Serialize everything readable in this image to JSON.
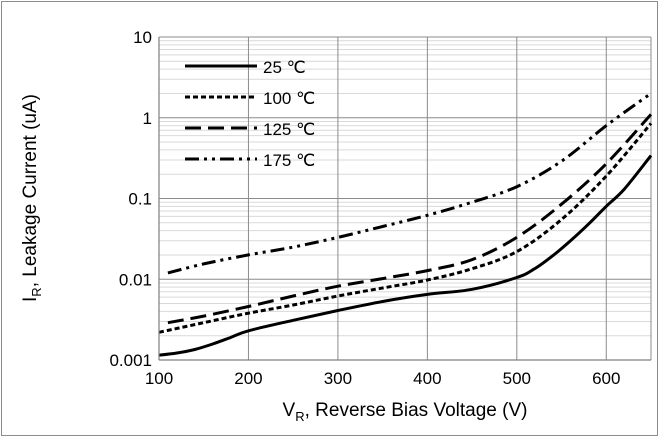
{
  "chart_data": {
    "type": "line",
    "title": "",
    "xlabel": {
      "main": "V",
      "sub": "R",
      "rest": ", Reverse Bias Voltage (V)"
    },
    "ylabel": {
      "main": "I",
      "sub": "R",
      "rest": ", Leakage Current (uA)"
    },
    "x_scale": "linear",
    "y_scale": "log",
    "xlim": [
      100,
      650
    ],
    "ylim": [
      0.001,
      10
    ],
    "x_ticks": [
      "100",
      "200",
      "300",
      "400",
      "500",
      "600"
    ],
    "y_ticks": [
      "0.001",
      "0.01",
      "0.1",
      "1",
      "10"
    ],
    "grid": true,
    "legend": "top-left",
    "series": [
      {
        "name": "25 ℃",
        "style": "solid",
        "x": [
          100,
          120,
          140,
          160,
          180,
          200,
          250,
          300,
          350,
          400,
          450,
          500,
          520,
          540,
          560,
          580,
          600,
          620,
          650
        ],
        "y": [
          0.00115,
          0.00122,
          0.00135,
          0.00158,
          0.0019,
          0.0023,
          0.0031,
          0.0041,
          0.0053,
          0.0065,
          0.0075,
          0.0105,
          0.0135,
          0.0195,
          0.03,
          0.048,
          0.08,
          0.13,
          0.34
        ]
      },
      {
        "name": "100 ℃",
        "style": "short-dash",
        "x": [
          100,
          150,
          200,
          250,
          300,
          350,
          400,
          450,
          500,
          550,
          600,
          650
        ],
        "y": [
          0.0022,
          0.0029,
          0.0038,
          0.0048,
          0.0062,
          0.0078,
          0.0098,
          0.0135,
          0.022,
          0.055,
          0.19,
          0.85
        ]
      },
      {
        "name": "125 ℃",
        "style": "long-dash",
        "x": [
          110,
          150,
          200,
          250,
          300,
          350,
          400,
          450,
          500,
          550,
          600,
          650
        ],
        "y": [
          0.0029,
          0.0035,
          0.0046,
          0.0062,
          0.0082,
          0.0102,
          0.0128,
          0.0175,
          0.033,
          0.085,
          0.27,
          1.1
        ]
      },
      {
        "name": "175 ℃",
        "style": "dash-dot-dot",
        "x": [
          110,
          150,
          200,
          250,
          300,
          350,
          400,
          450,
          500,
          550,
          600,
          650
        ],
        "y": [
          0.012,
          0.0155,
          0.02,
          0.025,
          0.033,
          0.045,
          0.062,
          0.09,
          0.14,
          0.29,
          0.8,
          2.0
        ]
      }
    ]
  }
}
